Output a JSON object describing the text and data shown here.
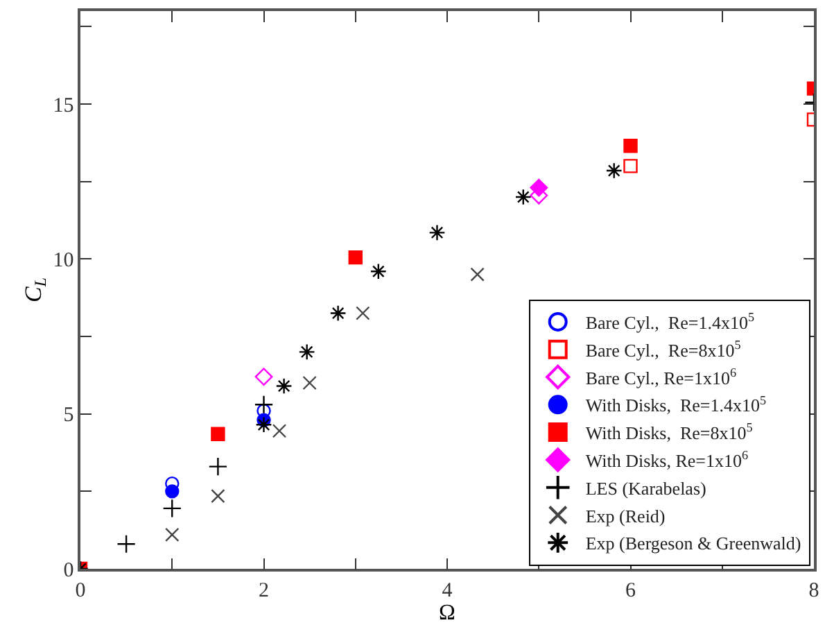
{
  "chart_data": {
    "type": "scatter",
    "xlabel": "Ω",
    "ylabel": "C$_{L}$",
    "xlim": [
      0,
      8
    ],
    "ylim": [
      0,
      18
    ],
    "xticks": [
      0,
      {
        "value": 1,
        "label": null
      },
      2,
      {
        "value": 3,
        "label": null
      },
      4,
      {
        "value": 5,
        "label": null
      },
      6,
      {
        "value": 7,
        "label": null
      },
      8
    ],
    "yticks": [
      0,
      {
        "value": 2.5,
        "label": null
      },
      5,
      {
        "value": 7.5,
        "label": null
      },
      10,
      {
        "value": 12.5,
        "label": null
      },
      15,
      {
        "value": 17.5,
        "label": null
      }
    ],
    "legend": "bottom right",
    "series": [
      {
        "name": "Bare Cyl.,  Re=1.4x10$^{5}$",
        "color": "#0000ff",
        "marker": "circle-open",
        "x": [
          1,
          2
        ],
        "values": [
          2.75,
          5.1
        ]
      },
      {
        "name": "Bare Cyl.,  Re=8x10$^{5}$",
        "color": "#ff0000",
        "marker": "square-open",
        "x": [
          6,
          8
        ],
        "values": [
          13.0,
          14.5
        ]
      },
      {
        "name": "Bare Cyl., Re=1x10$^{6}$",
        "color": "#ff00ff",
        "marker": "diamond-open",
        "x": [
          2,
          5
        ],
        "values": [
          6.2,
          12.05
        ]
      },
      {
        "name": "With Disks,  Re=1.4x10$^{5}$",
        "color": "#0000ff",
        "marker": "circle",
        "x": [
          1,
          2
        ],
        "values": [
          2.5,
          4.8
        ]
      },
      {
        "name": "With Disks,  Re=8x10$^{5}$",
        "color": "#ff0000",
        "marker": "square",
        "x": [
          0,
          1.5,
          3,
          6,
          8
        ],
        "values": [
          0,
          4.35,
          10.05,
          13.65,
          15.5
        ]
      },
      {
        "name": "With Disks, Re=1x10$^{6}$",
        "color": "#ff00ff",
        "marker": "diamond",
        "x": [
          5
        ],
        "values": [
          12.3
        ]
      },
      {
        "name": "LES (Karabelas)",
        "color": "#000000",
        "marker": "cross",
        "x": [
          0.5,
          1,
          1.5,
          2,
          8
        ],
        "values": [
          0.8,
          1.95,
          3.3,
          5.3,
          15.05
        ]
      },
      {
        "name": "Exp (Reid)",
        "color": "#444444",
        "marker": "x",
        "x": [
          1,
          1.5,
          2.17,
          2.5,
          3.08,
          4.33
        ],
        "values": [
          1.1,
          2.35,
          4.45,
          6.0,
          8.25,
          9.5
        ]
      },
      {
        "name": "Exp (Bergeson & Greenwald)",
        "color": "#000000",
        "x": [
          0,
          2,
          2.22,
          2.47,
          2.81,
          3.25,
          3.89,
          4.83,
          5.82
        ],
        "values": [
          0,
          4.65,
          5.9,
          7.0,
          8.25,
          9.6,
          10.85,
          12.0,
          12.85
        ]
      }
    ]
  }
}
